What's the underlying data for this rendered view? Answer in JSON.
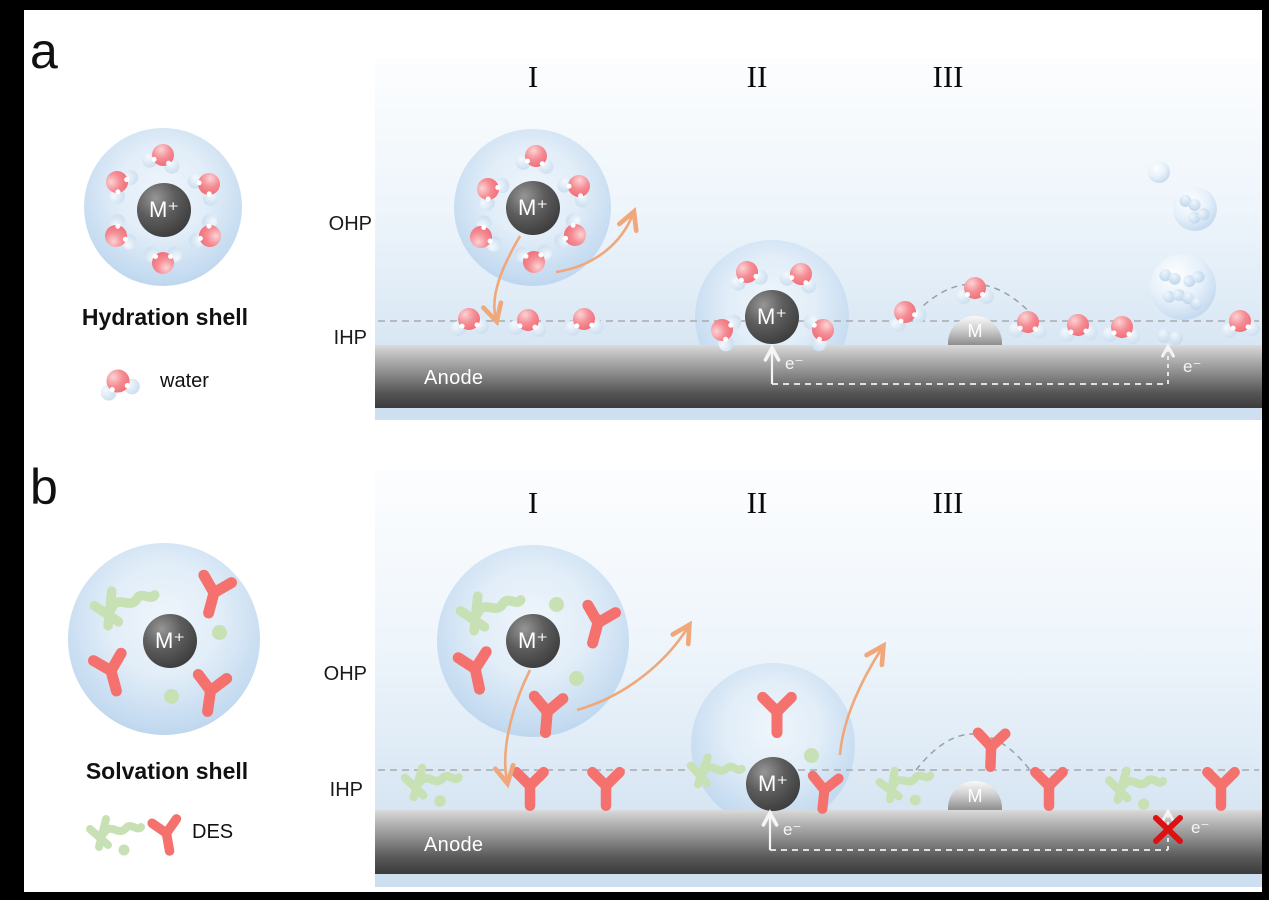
{
  "figure": {
    "panel_a": {
      "panel_label": "a",
      "shell_title": "Hydration shell",
      "legend_label": "water",
      "ohp_label": "OHP",
      "ihp_label": "IHP",
      "anode_label": "Anode",
      "stage_1": "I",
      "stage_2": "II",
      "stage_3": "III",
      "ion_label": "M⁺",
      "metal_label": "M",
      "electron_label": "e⁻"
    },
    "panel_b": {
      "panel_label": "b",
      "shell_title": "Solvation shell",
      "legend_label": "DES",
      "ohp_label": "OHP",
      "ihp_label": "IHP",
      "anode_label": "Anode",
      "stage_1": "I",
      "stage_2": "II",
      "stage_3": "III",
      "ion_label": "M⁺",
      "metal_label": "M",
      "electron_label": "e⁻"
    },
    "colors": {
      "water_oxygen_red": "#ee5c68",
      "hydrogen_blue": "#c7dbee",
      "des_hba_green": "#c8e1b4",
      "des_hbd_red": "#f4716d",
      "shell_blue": "#a5c6e7",
      "arrow_orange": "#f0a87a",
      "blocked_cross_red": "#dd1111",
      "anode_dark_gray": "#3b3b3b"
    }
  }
}
